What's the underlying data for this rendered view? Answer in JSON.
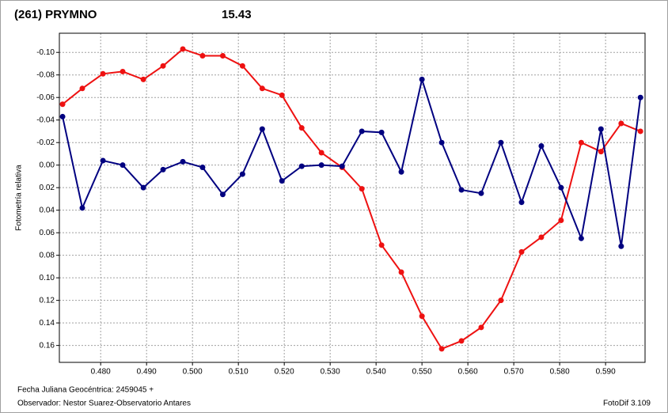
{
  "chart_data": {
    "type": "line",
    "title": "(261) PRYMNO",
    "title_color": "#ff0000",
    "subtitle": "15.43",
    "subtitle_color": "#00008b",
    "ylabel": "Fotometría relativa",
    "xlabel": "Fecha Juliana Geocéntrica: 2459045 +",
    "annotations": [
      "Observador: Nestor Suarez-Observatorio Antares",
      "FotoDif 3.109"
    ],
    "x": [
      0.4717,
      0.476,
      0.4805,
      0.4848,
      0.4893,
      0.4936,
      0.4979,
      0.5022,
      0.5066,
      0.5109,
      0.5152,
      0.5195,
      0.5238,
      0.5281,
      0.5326,
      0.5369,
      0.5412,
      0.5455,
      0.55,
      0.5543,
      0.5586,
      0.5629,
      0.5672,
      0.5717,
      0.576,
      0.5803,
      0.5847,
      0.589,
      0.5934,
      0.5976
    ],
    "series": [
      {
        "color": "#ee1111",
        "values": [
          -0.054,
          -0.068,
          -0.081,
          -0.083,
          -0.076,
          -0.088,
          -0.103,
          -0.097,
          -0.097,
          -0.088,
          -0.068,
          -0.062,
          -0.033,
          -0.011,
          0.002,
          0.021,
          0.071,
          0.095,
          0.134,
          0.163,
          0.156,
          0.144,
          0.12,
          0.077,
          0.064,
          0.049,
          -0.02,
          -0.012,
          -0.037,
          -0.03
        ]
      },
      {
        "color": "#000080",
        "values": [
          -0.043,
          0.038,
          -0.004,
          0.0,
          0.02,
          0.004,
          -0.003,
          0.002,
          0.026,
          0.008,
          -0.032,
          0.014,
          0.001,
          0.0,
          0.001,
          -0.03,
          -0.029,
          0.006,
          -0.076,
          -0.02,
          0.022,
          0.025,
          -0.02,
          0.033,
          -0.017,
          0.02,
          0.065,
          -0.032,
          0.072,
          -0.06
        ]
      }
    ],
    "xlim": [
      0.471,
      0.5986
    ],
    "xticks": [
      {
        "value": 0.48,
        "label": "0.480"
      },
      {
        "value": 0.49,
        "label": "0.490"
      },
      {
        "value": 0.5,
        "label": "0.500"
      },
      {
        "value": 0.51,
        "label": "0.510"
      },
      {
        "value": 0.52,
        "label": "0.520"
      },
      {
        "value": 0.53,
        "label": "0.530"
      },
      {
        "value": 0.54,
        "label": "0.540"
      },
      {
        "value": 0.55,
        "label": "0.550"
      },
      {
        "value": 0.56,
        "label": "0.560"
      },
      {
        "value": 0.57,
        "label": "0.570"
      },
      {
        "value": 0.58,
        "label": "0.580"
      },
      {
        "value": 0.59,
        "label": "0.590"
      }
    ],
    "ylim": [
      -0.117,
      0.175
    ],
    "y_inverted": true,
    "yticks": [
      {
        "value": -0.1,
        "label": "-0.10"
      },
      -0.08,
      -0.06,
      -0.04,
      -0.02,
      {
        "value": 0,
        "label": "0.00"
      },
      0.02,
      0.04,
      0.06,
      0.08,
      {
        "value": 0.1,
        "label": "0.10"
      },
      0.12,
      0.14,
      0.16
    ],
    "grid": true
  }
}
